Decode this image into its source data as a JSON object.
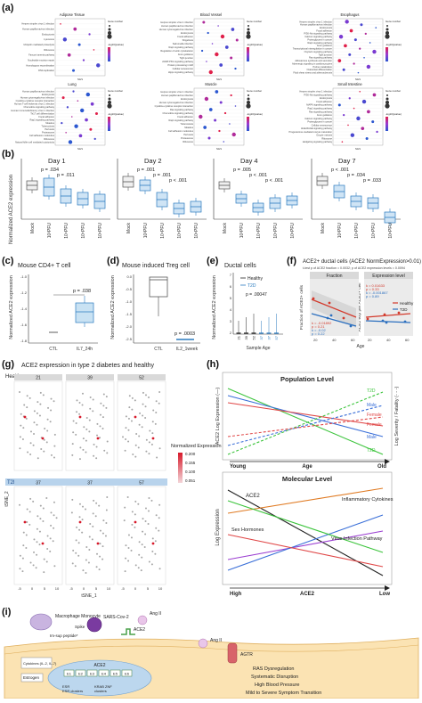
{
  "figure": {
    "panel_labels": [
      "(a)",
      "(b)",
      "(c)",
      "(d)",
      "(e)",
      "(f)",
      "(g)",
      "(h)",
      "(i)"
    ]
  },
  "panel_a": {
    "titles": [
      "Adipose Tissue",
      "Blood Vessel",
      "Esophagus",
      "Lung",
      "Muscle",
      "Small Intestine"
    ],
    "xlabel": "NES",
    "legend_gene": "Gene number",
    "legend_p": "-log10(pvalue)",
    "terms": [
      [
        "Herpes simplex virus 1 infection",
        "Human papillomavirus infection",
        "Endocytosis",
        "Lysosome",
        "Ubiquitin mediated proteolysis",
        "Ribosome",
        "Fanconi anemia pathway",
        "Nucleotide excision repair",
        "Homologous recombination",
        "DNA replication"
      ],
      [
        "Herpes simplex virus 1 infection",
        "Human papillomavirus infection",
        "Human cytomegalovirus infection",
        "Endocytosis",
        "Focal adhesion",
        "Shigellosis",
        "Salmonella infection",
        "Rap1 signaling pathway",
        "Regulation of actin cytoskeleton",
        "Axon guidance",
        "Tight junction",
        "cGMP-PKG signaling pathway",
        "Protein processing in ER",
        "Cellular senescence",
        "Hippo signaling pathway"
      ],
      [
        "Herpes simplex virus 1 infection",
        "Human papillomavirus infection",
        "Endocytosis",
        "Focal adhesion",
        "PI3K-Akt signaling pathway",
        "Calcium signaling pathway",
        "Proteoglycans in cancer",
        "Rap1 signaling pathway",
        "Axon guidance",
        "Transcriptional misregulation in cancer",
        "Oxytocin signaling pathway",
        "Tight junction",
        "Ras signaling pathway",
        "Aldosterone synthesis and secretion",
        "Adrenergic signaling in cardiomyocytes",
        "Purine metabolism",
        "Osteoclast differentiation",
        "Fluid shear stress and atherosclerosis"
      ],
      [
        "Human papillomavirus infection",
        "Endocytosis",
        "Human cytomegalovirus infection",
        "Cytokine-cytokine receptor interaction",
        "Human T-cell leukemia virus 1 infection",
        "Chemokine signaling pathway",
        "Human immunodeficiency virus 1 infection",
        "Th17 cell differentiation",
        "Focal adhesion",
        "Rap1 signaling pathway",
        "Measles",
        "Tuberculosis",
        "Pertussis",
        "Proteasome",
        "Cell adhesion molecules",
        "Ribosome",
        "Natural killer cell mediated cytotoxicity"
      ],
      [
        "Herpes simplex virus 1 infection",
        "Human papillomavirus infection",
        "Endocytosis",
        "Human cytomegalovirus infection",
        "Cytokine-cytokine receptor interaction",
        "Ras signaling pathway",
        "Chemokine signaling pathway",
        "Focal adhesion",
        "Rap1 signaling pathway",
        "Tuberculosis",
        "Measles",
        "Cell adhesion molecules",
        "Pertussis",
        "Proteasome",
        "Ribosome"
      ],
      [
        "Herpes simplex virus 1 infection",
        "PI3K-Akt signaling pathway",
        "Endocytosis",
        "Focal adhesion",
        "MAPK signaling pathway",
        "Rap1 signaling pathway",
        "Ras signaling pathway",
        "Axon guidance",
        "Calcium signaling pathway",
        "Proteoglycans in cancer",
        "Cellular senescence",
        "AGE-RAGE signaling pathway",
        "Progesterone-mediated oocyte maturation",
        "Oocyte meiosis",
        "Ribosome",
        "Hedgehog signaling pathway"
      ]
    ]
  },
  "panel_b": {
    "ylabel": "Normalized ACE2 expression",
    "groups": [
      "Mock",
      "10³PFU",
      "10⁴PFU",
      "10⁵PFU",
      "10⁶PFU"
    ],
    "days": [
      {
        "title": "Day 1",
        "pvals": [
          "p = .034",
          "p = .011"
        ]
      },
      {
        "title": "Day 2",
        "pvals": [
          "p = .001",
          "p = .001",
          "p < .001"
        ]
      },
      {
        "title": "Day 4",
        "pvals": [
          "p = .005",
          "p < .001",
          "p < .001"
        ]
      },
      {
        "title": "Day 7",
        "pvals": [
          "p < .001",
          "p = .034",
          "p = .033"
        ]
      }
    ]
  },
  "panel_c": {
    "title": "Mouse CD4+ T cell",
    "ylabel": "Normalized ACE2 expression",
    "groups": [
      "CTL",
      "IL7_24h"
    ],
    "pval": "p = .038",
    "yticks": [
      "-1.0",
      "-1.2",
      "-1.4",
      "-1.6",
      "-1.8"
    ]
  },
  "panel_d": {
    "title": "Mouse induced Treg cell",
    "ylabel": "Normalized ACE2 expression",
    "groups": [
      "CTL",
      "IL2_1week"
    ],
    "pval": "p = .0003",
    "yticks": [
      "0.0",
      "-0.5",
      "-1.0",
      "-1.5",
      "-2.0",
      "-2.5"
    ]
  },
  "panel_e": {
    "title": "Ductal cells",
    "ylabel": "Normalized ACE2 expression",
    "xlabel": "Sample Age",
    "legend": [
      "Healthy",
      "T2D"
    ],
    "pval": "p = .00047",
    "ticks": [
      "2",
      "3",
      "4",
      "5",
      "6",
      "7"
    ],
    "ages": [
      "21",
      "39",
      "52",
      "37",
      "37",
      "57"
    ]
  },
  "panel_f": {
    "title": "ACE2+ ductal cells  (ACE2 NormExpression>0.01)",
    "subtitle": "t-test p of ACE2 fraction = 0.0032; p of ACE2 expression levels = 0.0094",
    "left_title": "Fraction",
    "right_title": "Expression level",
    "left_ylabel": "Fraction of ACE2+ cells",
    "right_ylabel": "ACE2 exp per ACE2+ cell",
    "xlabel": "Age",
    "legend": [
      "Healthy",
      "T2D"
    ],
    "left_stats": [
      "k = -0.01892",
      "p = 0.21",
      "k = -0.02",
      "p = 0.22"
    ],
    "right_stats": [
      "k = 0.01633",
      "p = 0.33",
      "k = -0.001867",
      "p = 0.89"
    ],
    "xticks": [
      "20",
      "40",
      "60"
    ]
  },
  "panel_g": {
    "title": "ACE2 expression in type 2 diabetes and healthy",
    "row_labels": [
      "Healthy",
      "T2D"
    ],
    "healthy_ages": [
      "21",
      "39",
      "52"
    ],
    "t2d_ages": [
      "37",
      "37",
      "57"
    ],
    "xlabel": "tSNE_1",
    "ylabel": "tSNE_2",
    "legend_title": "Normalized Expression Level",
    "legend_values": [
      "0.200",
      "0.155",
      "0.100",
      "0.051"
    ],
    "xticks": [
      "-5",
      "0",
      "5",
      "10"
    ]
  },
  "panel_h": {
    "top_title": "Population Level",
    "top_ylabel_left": "ACE2 Log Expression (—)",
    "top_ylabel_right": "Log Severity / Fatality (- - -)",
    "top_xlabel": "Age",
    "young": "Young",
    "old": "Old",
    "line_labels": [
      "T2D",
      "Male",
      "Female",
      "Female",
      "Male",
      "T2D"
    ],
    "bottom_title": "Molecular Level",
    "bottom_ylabel": "Log Expression",
    "bottom_labels": [
      "ACE2",
      "Inflammatory Cytokines",
      "Sex Hormones",
      "Virus Infection Pathway"
    ],
    "bottom_xlabel": "ACE2",
    "high": "High",
    "low": "Low",
    "colors": {
      "t2d": "#3cc43c",
      "male": "#3a6fd8",
      "female": "#e04747",
      "purple": "#9b3fd1",
      "orange": "#e07b24"
    }
  },
  "panel_i": {
    "labels": [
      "Macrophage Monocyte",
      "Spike",
      "Im-sup peptide*",
      "SARS-Cov-2",
      "Ang II",
      "ACE2",
      "Ang II",
      "AGTR",
      "Cytokines (IL-2, IL-7)",
      "Estrogen",
      "ACE2",
      "ESR",
      "KRAB ZNF",
      "ESR clusters",
      "clusters",
      "RAS Dysregulation",
      "Systematic Disruption",
      "High Blood Pressure",
      "Mild to Severe Symptom Transition"
    ],
    "gene_boxes": [
      "E1",
      "E2",
      "E3",
      "E4",
      "E5",
      "E6"
    ]
  }
}
